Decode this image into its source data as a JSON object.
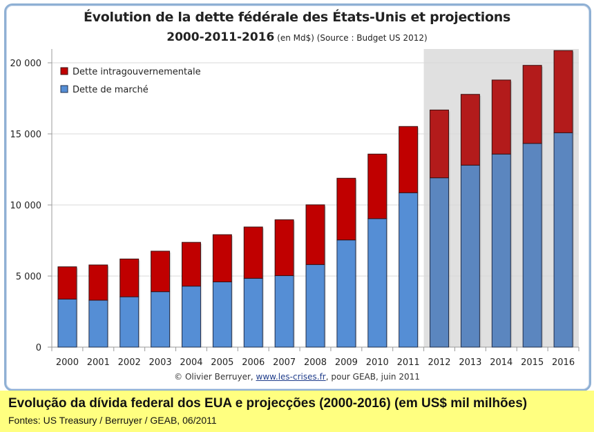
{
  "chart_data": {
    "type": "bar",
    "stacked": true,
    "title": "Évolution de la dette fédérale des États-Unis et projections",
    "subtitle_main": "2000-2011-2016",
    "subtitle_extra": " (en Md$) (Source : Budget US 2012)",
    "xlabel": "",
    "ylabel": "",
    "ylim": [
      0,
      21000
    ],
    "yticks": [
      0,
      5000,
      10000,
      15000,
      20000
    ],
    "ytick_labels": [
      "0",
      "5 000",
      "10 000",
      "15 000",
      "20 000"
    ],
    "grid": true,
    "legend_position": "top-left",
    "projection_shaded_from": "2012",
    "categories": [
      "2000",
      "2001",
      "2002",
      "2003",
      "2004",
      "2005",
      "2006",
      "2007",
      "2008",
      "2009",
      "2010",
      "2011",
      "2012",
      "2013",
      "2014",
      "2015",
      "2016"
    ],
    "series": [
      {
        "name": "Dette de marché",
        "color": "#558ed5",
        "projection_color": "#5b86bf",
        "values": [
          3380,
          3300,
          3540,
          3900,
          4290,
          4590,
          4840,
          5030,
          5810,
          7540,
          9040,
          10860,
          11910,
          12800,
          13580,
          14330,
          15080
        ]
      },
      {
        "name": "Dette intragouvernementale",
        "color": "#c00000",
        "projection_color": "#b31b1b",
        "values": [
          2270,
          2480,
          2660,
          2850,
          3080,
          3320,
          3610,
          3930,
          4200,
          4340,
          4540,
          4660,
          4770,
          4980,
          5210,
          5490,
          5780
        ]
      }
    ],
    "totals": [
      5650,
      5780,
      6200,
      6750,
      7370,
      7910,
      8450,
      8960,
      10010,
      11880,
      13580,
      15520,
      16680,
      17780,
      18790,
      19820,
      20860
    ]
  },
  "legend": {
    "intra": "Dette intragouvernementale",
    "market": "Dette de marché"
  },
  "credit": {
    "prefix": "© Olivier Berruyer, ",
    "link": "www.les-crises.fr",
    "suffix": ", pour GEAB, juin 2011"
  },
  "caption": {
    "line1": "Evolução da dívida federal dos EUA e projecções (2000-2016) (em US$ mil milhões)",
    "line2": "Fontes: US Treasury / Berruyer / GEAB, 06/2011"
  }
}
